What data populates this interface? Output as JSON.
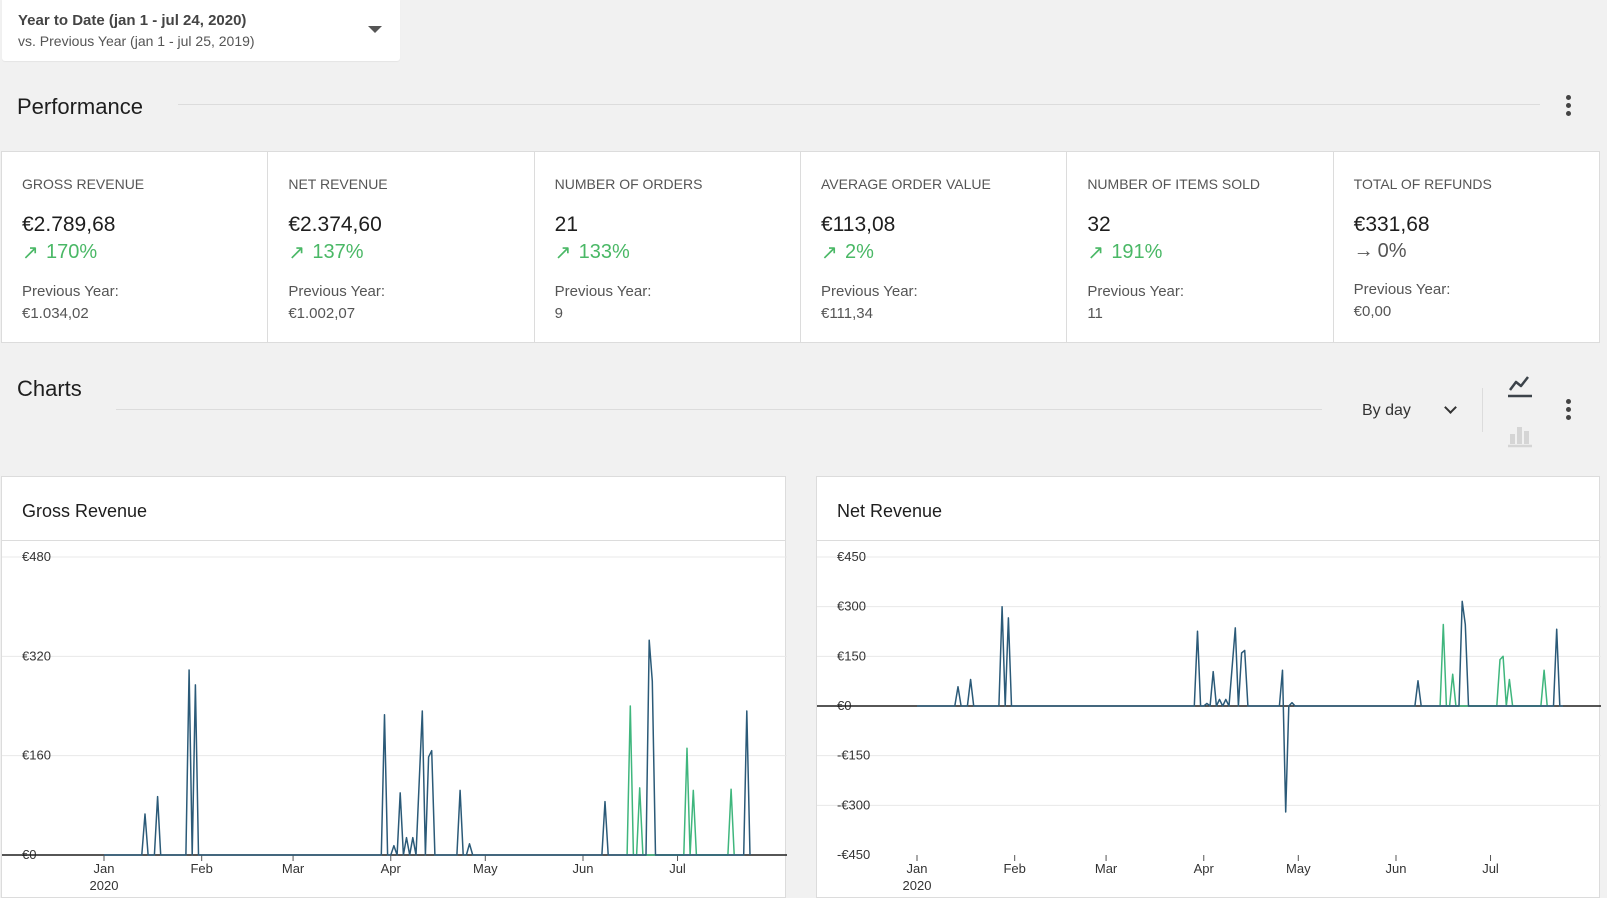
{
  "date_range": {
    "primary": "Year to Date (jan 1 - jul 24, 2020)",
    "secondary": "vs. Previous Year (jan 1 - jul 25, 2019)"
  },
  "performance": {
    "title": "Performance",
    "cards": [
      {
        "label": "GROSS REVENUE",
        "value": "€2.789,68",
        "delta": "170%",
        "trend": "up",
        "prev_label": "Previous Year:",
        "prev_value": "€1.034,02"
      },
      {
        "label": "NET REVENUE",
        "value": "€2.374,60",
        "delta": "137%",
        "trend": "up",
        "prev_label": "Previous Year:",
        "prev_value": "€1.002,07"
      },
      {
        "label": "NUMBER OF ORDERS",
        "value": "21",
        "delta": "133%",
        "trend": "up",
        "prev_label": "Previous Year:",
        "prev_value": "9"
      },
      {
        "label": "AVERAGE ORDER VALUE",
        "value": "€113,08",
        "delta": "2%",
        "trend": "up",
        "prev_label": "Previous Year:",
        "prev_value": "€111,34"
      },
      {
        "label": "NUMBER OF ITEMS SOLD",
        "value": "32",
        "delta": "191%",
        "trend": "up",
        "prev_label": "Previous Year:",
        "prev_value": "11"
      },
      {
        "label": "TOTAL OF REFUNDS",
        "value": "€331,68",
        "delta": "0%",
        "trend": "flat",
        "prev_label": "Previous Year:",
        "prev_value": "€0,00"
      }
    ]
  },
  "charts_section": {
    "title": "Charts",
    "interval": "By day",
    "line_chart_icon": "line-chart-icon",
    "bar_chart_icon": "bar-chart-icon"
  },
  "colors": {
    "current": "#2b5a78",
    "previous": "#3fb67d",
    "positive": "#4ab866"
  },
  "chart_data": [
    {
      "type": "line",
      "title": "Gross Revenue",
      "ylim": [
        0,
        480
      ],
      "yticks": [
        "€480",
        "€320",
        "€160",
        "€0"
      ],
      "ytick_values": [
        480,
        320,
        160,
        0
      ],
      "xticks": [
        "Jan",
        "Feb",
        "Mar",
        "Apr",
        "May",
        "Jun",
        "Jul"
      ],
      "xtick_year": "2020",
      "x_domain": [
        "2020-01-01",
        "2020-07-24"
      ],
      "series": [
        {
          "color": "#3fb67d",
          "points": [
            [
              "2020-06-15",
              0
            ],
            [
              "2020-06-16",
              240
            ],
            [
              "2020-06-17",
              0
            ],
            [
              "2020-06-18",
              0
            ],
            [
              "2020-06-19",
              108
            ],
            [
              "2020-06-20",
              0
            ],
            [
              "2020-07-03",
              0
            ],
            [
              "2020-07-04",
              172
            ],
            [
              "2020-07-05",
              0
            ],
            [
              "2020-07-06",
              104
            ],
            [
              "2020-07-07",
              0
            ],
            [
              "2020-07-17",
              0
            ],
            [
              "2020-07-18",
              106
            ],
            [
              "2020-07-19",
              0
            ]
          ]
        },
        {
          "color": "#2b5a78",
          "points": [
            [
              "2020-01-01",
              0
            ],
            [
              "2020-01-13",
              0
            ],
            [
              "2020-01-14",
              66
            ],
            [
              "2020-01-15",
              0
            ],
            [
              "2020-01-17",
              0
            ],
            [
              "2020-01-18",
              94
            ],
            [
              "2020-01-19",
              0
            ],
            [
              "2020-01-27",
              0
            ],
            [
              "2020-01-28",
              298
            ],
            [
              "2020-01-29",
              0
            ],
            [
              "2020-01-30",
              274
            ],
            [
              "2020-01-31",
              0
            ],
            [
              "2020-03-29",
              0
            ],
            [
              "2020-03-30",
              226
            ],
            [
              "2020-03-31",
              0
            ],
            [
              "2020-04-01",
              0
            ],
            [
              "2020-04-02",
              15
            ],
            [
              "2020-04-03",
              0
            ],
            [
              "2020-04-04",
              100
            ],
            [
              "2020-04-05",
              0
            ],
            [
              "2020-04-06",
              28
            ],
            [
              "2020-04-07",
              0
            ],
            [
              "2020-04-08",
              28
            ],
            [
              "2020-04-09",
              0
            ],
            [
              "2020-04-11",
              232
            ],
            [
              "2020-04-12",
              0
            ],
            [
              "2020-04-13",
              158
            ],
            [
              "2020-04-14",
              168
            ],
            [
              "2020-04-15",
              0
            ],
            [
              "2020-04-22",
              0
            ],
            [
              "2020-04-23",
              104
            ],
            [
              "2020-04-24",
              0
            ],
            [
              "2020-04-25",
              0
            ],
            [
              "2020-04-26",
              18
            ],
            [
              "2020-04-27",
              0
            ],
            [
              "2020-06-07",
              0
            ],
            [
              "2020-06-08",
              86
            ],
            [
              "2020-06-09",
              0
            ],
            [
              "2020-06-21",
              0
            ],
            [
              "2020-06-22",
              346
            ],
            [
              "2020-06-23",
              280
            ],
            [
              "2020-06-24",
              0
            ],
            [
              "2020-07-22",
              0
            ],
            [
              "2020-07-23",
              232
            ],
            [
              "2020-07-24",
              0
            ]
          ]
        }
      ]
    },
    {
      "type": "line",
      "title": "Net Revenue",
      "ylim": [
        -450,
        450
      ],
      "yticks": [
        "€450",
        "€300",
        "€150",
        "€0",
        "-€150",
        "-€300",
        "-€450"
      ],
      "ytick_values": [
        450,
        300,
        150,
        0,
        -150,
        -300,
        -450
      ],
      "xticks": [
        "Jan",
        "Feb",
        "Mar",
        "Apr",
        "May",
        "Jun",
        "Jul"
      ],
      "xtick_year": "2020",
      "x_domain": [
        "2020-01-01",
        "2020-07-24"
      ],
      "series": [
        {
          "color": "#3fb67d",
          "points": [
            [
              "2020-06-15",
              0
            ],
            [
              "2020-06-16",
              246
            ],
            [
              "2020-06-17",
              0
            ],
            [
              "2020-06-18",
              0
            ],
            [
              "2020-06-19",
              96
            ],
            [
              "2020-06-20",
              0
            ],
            [
              "2020-07-03",
              0
            ],
            [
              "2020-07-04",
              140
            ],
            [
              "2020-07-05",
              150
            ],
            [
              "2020-07-06",
              0
            ],
            [
              "2020-07-07",
              80
            ],
            [
              "2020-07-08",
              0
            ],
            [
              "2020-07-17",
              0
            ],
            [
              "2020-07-18",
              108
            ],
            [
              "2020-07-19",
              0
            ]
          ]
        },
        {
          "color": "#2b5a78",
          "points": [
            [
              "2020-01-01",
              0
            ],
            [
              "2020-01-13",
              0
            ],
            [
              "2020-01-14",
              58
            ],
            [
              "2020-01-15",
              0
            ],
            [
              "2020-01-17",
              0
            ],
            [
              "2020-01-18",
              80
            ],
            [
              "2020-01-19",
              0
            ],
            [
              "2020-01-27",
              0
            ],
            [
              "2020-01-28",
              300
            ],
            [
              "2020-01-29",
              0
            ],
            [
              "2020-01-30",
              266
            ],
            [
              "2020-01-31",
              0
            ],
            [
              "2020-03-29",
              0
            ],
            [
              "2020-03-30",
              226
            ],
            [
              "2020-03-31",
              0
            ],
            [
              "2020-04-01",
              0
            ],
            [
              "2020-04-02",
              8
            ],
            [
              "2020-04-03",
              0
            ],
            [
              "2020-04-04",
              104
            ],
            [
              "2020-04-05",
              0
            ],
            [
              "2020-04-06",
              20
            ],
            [
              "2020-04-07",
              0
            ],
            [
              "2020-04-08",
              20
            ],
            [
              "2020-04-09",
              0
            ],
            [
              "2020-04-11",
              236
            ],
            [
              "2020-04-12",
              0
            ],
            [
              "2020-04-13",
              160
            ],
            [
              "2020-04-14",
              168
            ],
            [
              "2020-04-15",
              0
            ],
            [
              "2020-04-25",
              0
            ],
            [
              "2020-04-26",
              108
            ],
            [
              "2020-04-27",
              -320
            ],
            [
              "2020-04-28",
              0
            ],
            [
              "2020-04-29",
              10
            ],
            [
              "2020-04-30",
              0
            ],
            [
              "2020-06-07",
              0
            ],
            [
              "2020-06-08",
              76
            ],
            [
              "2020-06-09",
              0
            ],
            [
              "2020-06-21",
              0
            ],
            [
              "2020-06-22",
              316
            ],
            [
              "2020-06-23",
              246
            ],
            [
              "2020-06-24",
              0
            ],
            [
              "2020-07-21",
              0
            ],
            [
              "2020-07-22",
              232
            ],
            [
              "2020-07-23",
              0
            ],
            [
              "2020-07-24",
              0
            ]
          ]
        }
      ]
    }
  ]
}
